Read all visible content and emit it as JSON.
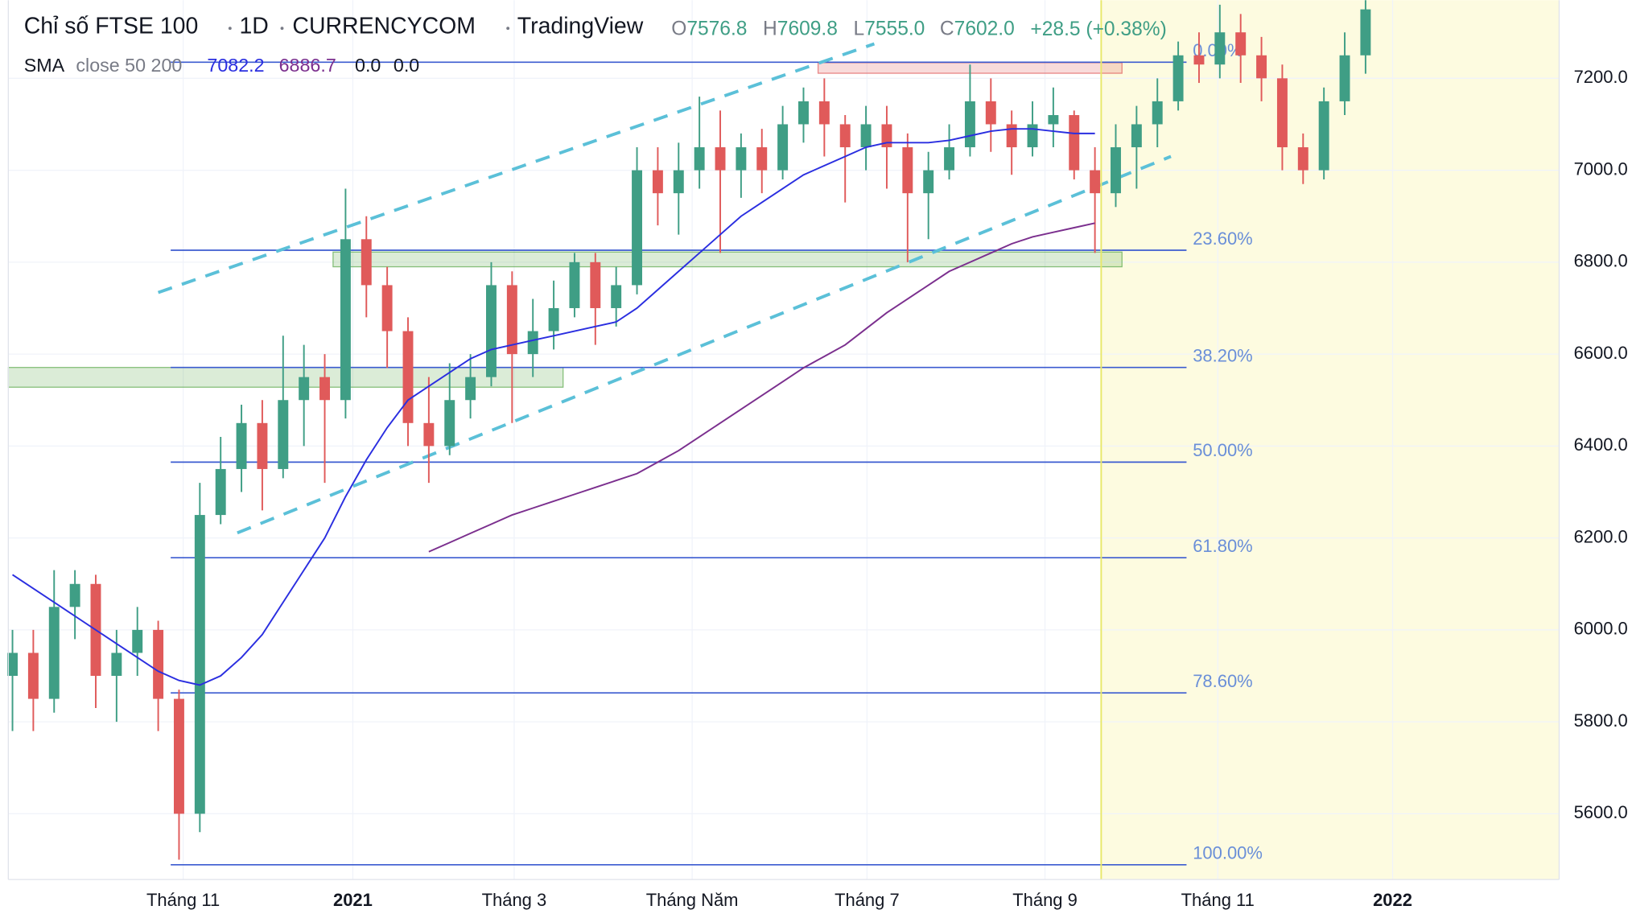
{
  "chart_data": {
    "type": "candlestick",
    "title": "Chỉ số FTSE 100",
    "interval": "1D",
    "source": "CURRENCYCOM",
    "platform": "TradingView",
    "ohlc_legend": [
      {
        "label": "O",
        "value": 7576.8
      },
      {
        "label": "H",
        "value": 7609.8
      },
      {
        "label": "L",
        "value": 7555.0,
        "value_label": "7555.0"
      },
      {
        "label": "C",
        "value": 7602.0,
        "value_label": "7602.0"
      }
    ],
    "change": "+28.5 (+0.38%)",
    "indicator": {
      "name": "SMA",
      "params": "close 50 200",
      "values": [
        7082.2,
        6886.7,
        {
          "value": 0,
          "label": "0.0"
        },
        {
          "value": 0,
          "label": "0.0"
        }
      ],
      "colors": [
        "#2a2ee0",
        "#7b2f8e",
        "#131722",
        "#131722"
      ]
    },
    "categories": [
      null,
      null,
      null,
      null,
      null,
      null,
      null,
      null,
      null,
      null,
      null,
      null,
      null,
      null,
      null,
      null,
      null,
      null,
      null,
      null,
      null,
      null,
      null,
      null,
      null,
      null,
      null,
      null,
      null,
      null,
      null,
      null,
      null,
      null,
      null,
      null,
      null,
      null,
      null,
      null,
      null,
      null,
      null,
      null,
      null,
      null,
      null,
      null,
      null,
      null,
      null,
      null,
      null,
      null,
      null,
      null,
      null,
      null,
      null,
      null,
      null,
      null,
      null,
      null,
      null,
      null
    ],
    "open": [
      5900,
      5950,
      5850,
      6050,
      6100,
      5900,
      5950,
      6000,
      5850,
      5600,
      6250,
      6350,
      6450,
      6350,
      6500,
      6550,
      6500,
      6850,
      6750,
      6650,
      6450,
      6400,
      6500,
      6550,
      6750,
      6600,
      6650,
      6700,
      6800,
      6700,
      6750,
      7000,
      6950,
      7000,
      7050,
      7000,
      7050,
      7000,
      7100,
      7150,
      7100,
      7050,
      7100,
      7050,
      6950,
      7000,
      7050,
      7150,
      7100,
      7050,
      7100,
      7120,
      7000,
      6950,
      7050,
      7100,
      7150,
      7250,
      7230,
      7300,
      7250,
      7200,
      7050,
      7000,
      7150,
      7250
    ],
    "high": [
      6000,
      6000,
      6130,
      6130,
      6120,
      6000,
      6050,
      6020,
      5870,
      6320,
      6420,
      6490,
      6500,
      6640,
      6620,
      6600,
      6960,
      6900,
      6790,
      6680,
      6550,
      6580,
      6600,
      6800,
      6780,
      6720,
      6760,
      6820,
      6820,
      6790,
      7050,
      7050,
      7060,
      7160,
      7130,
      7080,
      7090,
      7140,
      7180,
      7200,
      7120,
      7140,
      7140,
      7080,
      7040,
      7100,
      7230,
      7200,
      7130,
      7150,
      7180,
      7130,
      7050,
      7100,
      7140,
      7200,
      7280,
      7300,
      7360,
      7340,
      7290,
      7230,
      7080,
      7180,
      7300,
      7370
    ],
    "low": [
      5780,
      5780,
      5820,
      5980,
      5830,
      5800,
      5900,
      5780,
      5500,
      5560,
      6230,
      6300,
      6260,
      6330,
      6400,
      6320,
      6460,
      6680,
      6570,
      6400,
      6320,
      6380,
      6460,
      6530,
      6450,
      6550,
      6610,
      6680,
      6620,
      6660,
      6730,
      6880,
      6860,
      6960,
      6820,
      6940,
      6950,
      6980,
      7060,
      7030,
      6930,
      7000,
      6960,
      6800,
      6850,
      6980,
      7030,
      7040,
      6990,
      7030,
      7050,
      6980,
      6820,
      6920,
      6960,
      7050,
      7130,
      7190,
      7200,
      7190,
      7150,
      7000,
      6970,
      6980,
      7120,
      7210
    ],
    "close": [
      5950,
      5850,
      6050,
      6100,
      5900,
      5950,
      6000,
      5850,
      5600,
      6250,
      6350,
      6450,
      6350,
      6500,
      6550,
      6500,
      6850,
      6750,
      6650,
      6450,
      6400,
      6500,
      6550,
      6750,
      6600,
      6650,
      6700,
      6800,
      6700,
      6750,
      7000,
      6950,
      7000,
      7050,
      7000,
      7050,
      7000,
      7100,
      7150,
      7100,
      7050,
      7100,
      7050,
      6950,
      7000,
      7050,
      7150,
      7100,
      7050,
      7100,
      7120,
      7000,
      6950,
      7050,
      7100,
      7150,
      7250,
      7230,
      7300,
      7250,
      7200,
      7050,
      7000,
      7150,
      7250,
      7350
    ],
    "up_color": "#3f9e85",
    "down_color": "#e05a5a",
    "series": [
      {
        "name": "SMA 50",
        "color": "#2a2ee0",
        "values": [
          6120,
          6090,
          6060,
          6030,
          6000,
          5970,
          5940,
          5910,
          5890,
          5880,
          5900,
          5940,
          5990,
          6060,
          6130,
          6200,
          6290,
          6370,
          6440,
          6500,
          6530,
          6560,
          6590,
          6610,
          6620,
          6630,
          6640,
          6650,
          6660,
          6670,
          6700,
          6740,
          6780,
          6820,
          6860,
          6900,
          6930,
          6960,
          6990,
          7010,
          7030,
          7050,
          7060,
          7060,
          7060,
          7065,
          7075,
          7085,
          7090,
          7090,
          7085,
          7080,
          7080,
          null,
          null,
          null,
          null,
          null,
          null,
          null,
          null,
          null,
          null,
          null,
          null,
          null
        ]
      },
      {
        "name": "SMA 200",
        "color": "#7b2f8e",
        "values": [
          null,
          null,
          null,
          null,
          null,
          null,
          null,
          null,
          null,
          null,
          null,
          null,
          null,
          null,
          null,
          null,
          null,
          null,
          null,
          null,
          6170,
          6190,
          6210,
          6230,
          6250,
          6265,
          6280,
          6295,
          6310,
          6325,
          6340,
          6365,
          6390,
          6420,
          6450,
          6480,
          6510,
          6540,
          6570,
          6595,
          6620,
          6655,
          6690,
          6720,
          6750,
          6780,
          6800,
          6820,
          6840,
          6855,
          6865,
          6875,
          6885,
          null,
          null,
          null,
          null,
          null,
          null,
          null,
          null,
          null,
          null,
          null,
          null,
          null
        ]
      }
    ],
    "fib_levels": [
      {
        "label": "0.00%",
        "value": 7235
      },
      {
        "label": "23.60%",
        "value": 6826
      },
      {
        "label": "38.20%",
        "value": 6571
      },
      {
        "label": "50.00%",
        "value": 6365
      },
      {
        "label": "61.80%",
        "value": 6157
      },
      {
        "label": "78.60%",
        "value": 5863
      },
      {
        "label": "100.00%",
        "value": 5489
      }
    ],
    "zones": [
      {
        "from": 38.7,
        "to": 53.3,
        "top": 7234,
        "bottom": 7211,
        "color": "#e05a5a"
      },
      {
        "from": 15.4,
        "to": 53.3,
        "top": 6822,
        "bottom": 6790,
        "color": "#5aa84a"
      },
      {
        "from": -0.2,
        "to": 26.45,
        "top": 6571,
        "bottom": 6528,
        "color": "#5aa84a"
      }
    ],
    "trendlines": [
      {
        "points": [
          [
            7,
            6734
          ],
          [
            41.4,
            7275
          ]
        ],
        "color": "#5bc0d8"
      },
      {
        "points": [
          [
            10.8,
            6211
          ],
          [
            55.65,
            7030
          ]
        ],
        "color": "#5bc0d8"
      }
    ],
    "ylim": [
      5457,
      7370
    ],
    "yticks": [
      {
        "value": 5600,
        "label": "5600.0"
      },
      {
        "value": 5800,
        "label": "5800.0"
      },
      {
        "value": 6000,
        "label": "6000.0"
      },
      {
        "value": 6200,
        "label": "6200.0"
      },
      {
        "value": 6400,
        "label": "6400.0"
      },
      {
        "value": 6600,
        "label": "6600.0"
      },
      {
        "value": 6800,
        "label": "6800.0"
      },
      {
        "value": 7000,
        "label": "7000.0"
      },
      {
        "value": 7200,
        "label": "7200.0"
      }
    ],
    "xticks": [
      {
        "value": 8.2,
        "label": "Tháng 11"
      },
      {
        "value": 16.35,
        "label": "2021"
      },
      {
        "value": 24.1,
        "label": "Tháng 3"
      },
      {
        "value": 32.65,
        "label": "Tháng Năm"
      },
      {
        "value": 41.05,
        "label": "Tháng 7"
      },
      {
        "value": 49.6,
        "label": "Tháng 9"
      },
      {
        "value": 57.9,
        "label": "Tháng 11"
      },
      {
        "value": 66.3,
        "label": "2022"
      }
    ],
    "grid": true
  }
}
